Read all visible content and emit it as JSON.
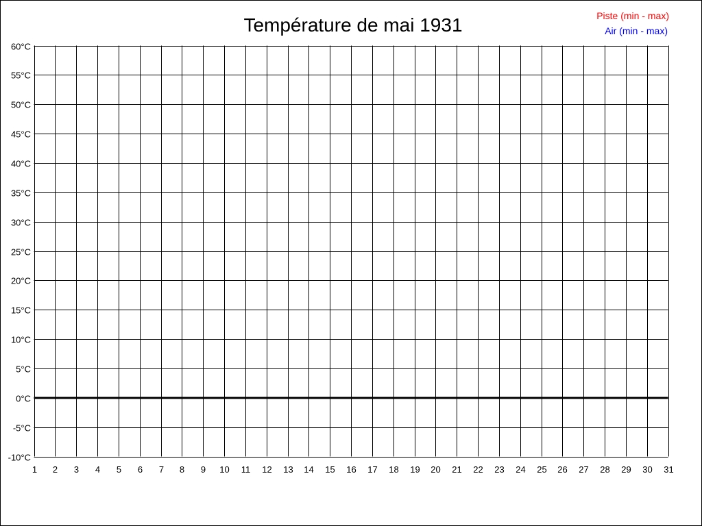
{
  "chart_data": {
    "type": "line",
    "title": "Température de mai 1931",
    "xlabel": "",
    "ylabel": "",
    "x_ticks": [
      "1",
      "2",
      "3",
      "4",
      "5",
      "6",
      "7",
      "8",
      "9",
      "10",
      "11",
      "12",
      "13",
      "14",
      "15",
      "16",
      "17",
      "18",
      "19",
      "20",
      "21",
      "22",
      "23",
      "24",
      "25",
      "26",
      "27",
      "28",
      "29",
      "30",
      "31"
    ],
    "y_ticks": [
      "60°C",
      "55°C",
      "50°C",
      "45°C",
      "40°C",
      "35°C",
      "30°C",
      "25°C",
      "20°C",
      "15°C",
      "10°C",
      "5°C",
      "0°C",
      "-5°C",
      "-10°C"
    ],
    "xlim": [
      1,
      31
    ],
    "ylim": [
      -10,
      60
    ],
    "y_step": 5,
    "grid": true,
    "legend_position": "top-right",
    "series": [
      {
        "name": "Piste (min - max)",
        "color": "#ff0000",
        "values": []
      },
      {
        "name": "Air (min - max)",
        "color": "#0000ff",
        "values": []
      }
    ]
  }
}
